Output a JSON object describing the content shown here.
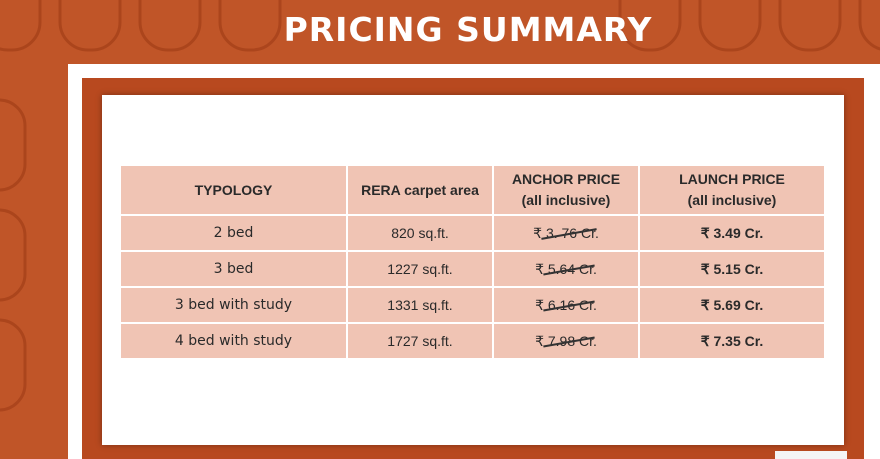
{
  "title": "PRICING SUMMARY",
  "table": {
    "headers": {
      "typology": "TYPOLOGY",
      "area": "RERA carpet area",
      "anchor_line1": "ANCHOR PRICE",
      "anchor_line2": "(all inclusive)",
      "launch_line1": "LAUNCH PRICE",
      "launch_line2": "(all inclusive)"
    },
    "rows": [
      {
        "typology": "2 bed",
        "area": "820 sq.ft.",
        "anchor_price": "₹ 3. 76 Cr.",
        "launch_price": "₹ 3.49 Cr."
      },
      {
        "typology": "3 bed",
        "area": "1227 sq.ft.",
        "anchor_price": "₹ 5.64 Cr.",
        "launch_price": "₹ 5.15 Cr."
      },
      {
        "typology": "3 bed with study",
        "area": "1331 sq.ft.",
        "anchor_price": "₹ 6.16 Cr.",
        "launch_price": "₹ 5.69 Cr."
      },
      {
        "typology": "4 bed with study",
        "area": "1727 sq.ft.",
        "anchor_price": "₹ 7.98 Cr.",
        "launch_price": "₹ 7.35 Cr."
      }
    ]
  },
  "colors": {
    "background": "#c05528",
    "frame": "#b8491f",
    "table_fill": "#f0c4b4",
    "title": "#ffffff"
  }
}
